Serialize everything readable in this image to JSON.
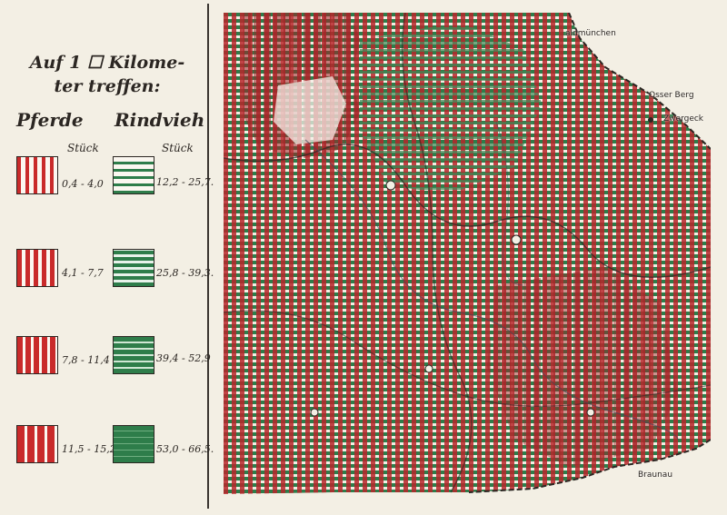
{
  "legend": {
    "title_line1": "Auf 1 ☐ Kilome-",
    "title_line2": "ter treffen:",
    "col_horses": "Pferde",
    "col_cattle": "Rindvieh",
    "unit_horses": "Stück",
    "unit_cattle": "Stück",
    "horses": [
      {
        "range": "0,4 - 4,0"
      },
      {
        "range": "4,1 - 7,7"
      },
      {
        "range": "7,8 - 11,4"
      },
      {
        "range": "11,5 - 15,2"
      }
    ],
    "cattle": [
      {
        "range": "12,2 - 25,7."
      },
      {
        "range": "25,8 - 39,3."
      },
      {
        "range": "39,4 - 52,9"
      },
      {
        "range": "53,0 - 66,5."
      }
    ]
  },
  "map": {
    "labels": {
      "top_right": "aldmünchen",
      "east_hill": "Osser Berg",
      "east_town": "Zwergeck",
      "bottom_right": "Braunau"
    },
    "colors": {
      "horse_red": "#b8262a",
      "cattle_green": "#2e7d4a",
      "paper": "#f3efe4"
    }
  }
}
